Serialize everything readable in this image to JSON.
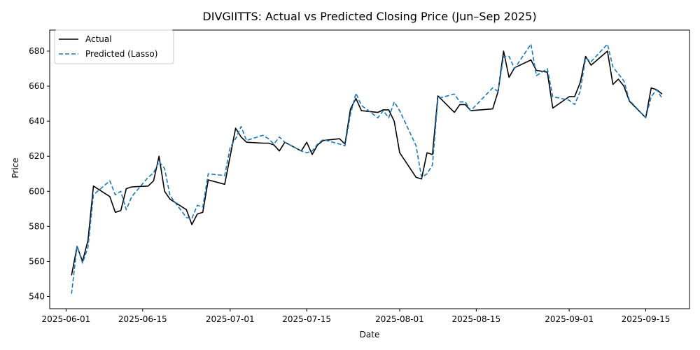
{
  "chart_data": {
    "type": "line",
    "title": "DIVGIITTS: Actual vs Predicted Closing Price (Jun–Sep 2025)",
    "xlabel": "Date",
    "ylabel": "Price",
    "xlim": [
      "2025-05-29",
      "2025-09-23"
    ],
    "ylim": [
      533,
      692
    ],
    "x_ticks": [
      "2025-06-01",
      "2025-06-15",
      "2025-07-01",
      "2025-07-15",
      "2025-08-01",
      "2025-08-15",
      "2025-09-01",
      "2025-09-15"
    ],
    "y_ticks": [
      540,
      560,
      580,
      600,
      620,
      640,
      660,
      680
    ],
    "grid": false,
    "legend": "top-left",
    "series": [
      {
        "name": "Actual",
        "color": "#000000",
        "style": "solid",
        "x": [
          "2025-06-02",
          "2025-06-03",
          "2025-06-04",
          "2025-06-05",
          "2025-06-06",
          "2025-06-09",
          "2025-06-10",
          "2025-06-11",
          "2025-06-12",
          "2025-06-13",
          "2025-06-16",
          "2025-06-17",
          "2025-06-18",
          "2025-06-19",
          "2025-06-20",
          "2025-06-23",
          "2025-06-24",
          "2025-06-25",
          "2025-06-26",
          "2025-06-27",
          "2025-06-30",
          "2025-07-01",
          "2025-07-02",
          "2025-07-03",
          "2025-07-04",
          "2025-07-07",
          "2025-07-08",
          "2025-07-09",
          "2025-07-10",
          "2025-07-11",
          "2025-07-14",
          "2025-07-15",
          "2025-07-16",
          "2025-07-17",
          "2025-07-18",
          "2025-07-21",
          "2025-07-22",
          "2025-07-23",
          "2025-07-24",
          "2025-07-25",
          "2025-07-28",
          "2025-07-29",
          "2025-07-30",
          "2025-07-31",
          "2025-08-01",
          "2025-08-04",
          "2025-08-05",
          "2025-08-06",
          "2025-08-07",
          "2025-08-08",
          "2025-08-11",
          "2025-08-12",
          "2025-08-13",
          "2025-08-14",
          "2025-08-18",
          "2025-08-19",
          "2025-08-20",
          "2025-08-21",
          "2025-08-22",
          "2025-08-25",
          "2025-08-26",
          "2025-08-28",
          "2025-08-29",
          "2025-09-01",
          "2025-09-02",
          "2025-09-03",
          "2025-09-04",
          "2025-09-05",
          "2025-09-08",
          "2025-09-09",
          "2025-09-10",
          "2025-09-11",
          "2025-09-12",
          "2025-09-15",
          "2025-09-16",
          "2025-09-17",
          "2025-09-18"
        ],
        "values": [
          552,
          568.5,
          560,
          572,
          603,
          597,
          588,
          589,
          601.5,
          602.5,
          603,
          606,
          620,
          600,
          595.5,
          589.5,
          581,
          587,
          588,
          606.5,
          604,
          620,
          636,
          631,
          628,
          627.5,
          627.5,
          626.5,
          623,
          628,
          623,
          628,
          621,
          626.5,
          629,
          630,
          627,
          647,
          653,
          646,
          645,
          646.5,
          646.5,
          640,
          622,
          608,
          607,
          622,
          621,
          654.5,
          645,
          649.5,
          649.5,
          646,
          647,
          657,
          680,
          665,
          670.5,
          675,
          669,
          668,
          647.5,
          654,
          654,
          662,
          677,
          672,
          680,
          661,
          664,
          660,
          651.5,
          642,
          659,
          658,
          655.5
        ]
      },
      {
        "name": "Predicted (Lasso)",
        "color": "#1f77b4",
        "style": "dashed",
        "x": [
          "2025-06-02",
          "2025-06-03",
          "2025-06-04",
          "2025-06-05",
          "2025-06-06",
          "2025-06-09",
          "2025-06-10",
          "2025-06-11",
          "2025-06-12",
          "2025-06-13",
          "2025-06-16",
          "2025-06-17",
          "2025-06-18",
          "2025-06-19",
          "2025-06-20",
          "2025-06-23",
          "2025-06-24",
          "2025-06-25",
          "2025-06-26",
          "2025-06-27",
          "2025-06-30",
          "2025-07-01",
          "2025-07-02",
          "2025-07-03",
          "2025-07-04",
          "2025-07-07",
          "2025-07-08",
          "2025-07-09",
          "2025-07-10",
          "2025-07-11",
          "2025-07-14",
          "2025-07-15",
          "2025-07-16",
          "2025-07-17",
          "2025-07-18",
          "2025-07-21",
          "2025-07-22",
          "2025-07-23",
          "2025-07-24",
          "2025-07-25",
          "2025-07-28",
          "2025-07-29",
          "2025-07-30",
          "2025-07-31",
          "2025-08-01",
          "2025-08-04",
          "2025-08-05",
          "2025-08-06",
          "2025-08-07",
          "2025-08-08",
          "2025-08-11",
          "2025-08-12",
          "2025-08-13",
          "2025-08-14",
          "2025-08-18",
          "2025-08-19",
          "2025-08-20",
          "2025-08-21",
          "2025-08-22",
          "2025-08-25",
          "2025-08-26",
          "2025-08-28",
          "2025-08-29",
          "2025-09-01",
          "2025-09-02",
          "2025-09-03",
          "2025-09-04",
          "2025-09-05",
          "2025-09-08",
          "2025-09-09",
          "2025-09-10",
          "2025-09-11",
          "2025-09-12",
          "2025-09-15",
          "2025-09-16",
          "2025-09-17",
          "2025-09-18"
        ],
        "values": [
          541.5,
          569,
          559,
          568,
          598,
          606,
          598,
          600,
          589.5,
          597,
          608,
          610.5,
          617,
          613,
          597.5,
          585,
          584.5,
          592,
          591,
          610,
          609,
          625,
          630,
          637,
          629,
          632,
          630,
          627,
          631,
          628,
          623,
          622,
          623,
          627,
          629.5,
          627,
          626,
          644,
          656,
          649,
          642,
          646,
          642,
          651,
          646,
          626,
          608,
          610,
          615,
          653,
          655.5,
          651,
          651,
          646,
          659,
          657,
          677,
          677,
          670,
          684,
          666,
          670,
          654,
          652,
          649.5,
          657,
          676,
          674,
          684,
          671,
          667,
          663,
          652,
          642,
          654,
          658,
          653
        ]
      }
    ]
  }
}
